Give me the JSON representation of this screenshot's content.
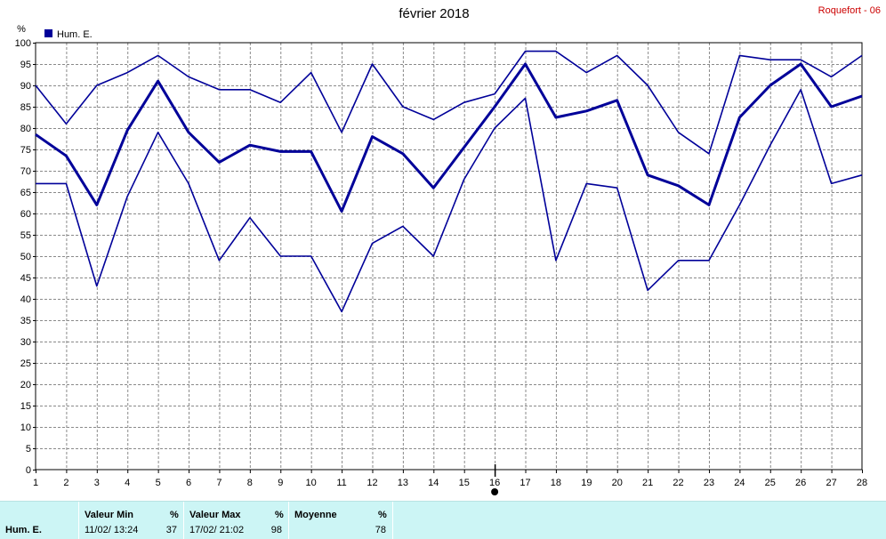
{
  "header": {
    "title": "février 2018",
    "station": "Roquefort - 06"
  },
  "legend": {
    "label": "Hum. E.",
    "color": "#000099"
  },
  "stats": {
    "row_label": "Hum.  E.",
    "min": {
      "header": "Valeur Min",
      "unit": "%",
      "date": "11/02/  13:24",
      "value": "37"
    },
    "max": {
      "header": "Valeur Max",
      "unit": "%",
      "date": "17/02/  21:02",
      "value": "98"
    },
    "avg": {
      "header": "Moyenne",
      "unit": "%",
      "value": "78"
    }
  },
  "chart_data": {
    "type": "line",
    "title": "février 2018",
    "ylabel": "%",
    "ylim": [
      0,
      100
    ],
    "yticks": [
      0,
      5,
      10,
      15,
      20,
      25,
      30,
      35,
      40,
      45,
      50,
      55,
      60,
      65,
      70,
      75,
      80,
      85,
      90,
      95,
      100
    ],
    "x": [
      1,
      2,
      3,
      4,
      5,
      6,
      7,
      8,
      9,
      10,
      11,
      12,
      13,
      14,
      15,
      16,
      17,
      18,
      19,
      20,
      21,
      22,
      23,
      24,
      25,
      26,
      27,
      28
    ],
    "grid": true,
    "legend_position": "top-left",
    "color": "#000099",
    "series": [
      {
        "name": "Hum. E.",
        "role": "max",
        "values": [
          90,
          81,
          90,
          93,
          97,
          92,
          89,
          89,
          86,
          93,
          79,
          95,
          85,
          82,
          86,
          88,
          98,
          98,
          93,
          97,
          90,
          79,
          74,
          97,
          96,
          96,
          92,
          97
        ]
      },
      {
        "name": "Hum. E.",
        "role": "avg",
        "values": [
          78.5,
          73.5,
          62,
          79.5,
          91,
          79,
          72,
          76,
          74.5,
          74.5,
          60.5,
          78,
          74,
          66,
          75.5,
          85,
          95,
          82.5,
          84,
          86.5,
          69,
          66.5,
          62,
          82.5,
          90,
          95,
          85,
          87.5
        ]
      },
      {
        "name": "Hum. E.",
        "role": "min",
        "values": [
          67,
          67,
          43,
          64,
          79,
          67,
          49,
          59,
          50,
          50,
          37,
          53,
          57,
          50,
          68,
          80,
          87,
          49,
          67,
          66,
          42,
          49,
          49,
          62,
          76,
          89,
          67,
          69
        ]
      }
    ]
  }
}
